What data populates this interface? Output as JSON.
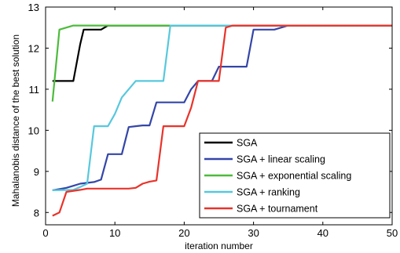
{
  "chart_data": {
    "type": "line",
    "xlabel": "iteration number",
    "ylabel": "Mahalanobis distance of the best solution",
    "xlim": [
      0,
      50
    ],
    "ylim": [
      7.7,
      13
    ],
    "xticks": [
      0,
      10,
      20,
      30,
      40,
      50
    ],
    "yticks": [
      8,
      9,
      10,
      11,
      12,
      13
    ],
    "grid": false,
    "legend_position": "bottom-right",
    "series": [
      {
        "name": "SGA",
        "color": "#000000",
        "points": [
          [
            1,
            11.2
          ],
          [
            4,
            11.2
          ],
          [
            5,
            12.1
          ],
          [
            5.5,
            12.45
          ],
          [
            8,
            12.45
          ],
          [
            9,
            12.55
          ],
          [
            50,
            12.55
          ]
        ]
      },
      {
        "name": "SGA + linear scaling",
        "color": "#3446a8",
        "points": [
          [
            1,
            8.54
          ],
          [
            3,
            8.6
          ],
          [
            4,
            8.65
          ],
          [
            5,
            8.7
          ],
          [
            7,
            8.74
          ],
          [
            8,
            8.8
          ],
          [
            9,
            9.42
          ],
          [
            11,
            9.42
          ],
          [
            12,
            10.08
          ],
          [
            13,
            10.1
          ],
          [
            14,
            10.12
          ],
          [
            15,
            10.12
          ],
          [
            16,
            10.68
          ],
          [
            20,
            10.68
          ],
          [
            21,
            11.0
          ],
          [
            22,
            11.2
          ],
          [
            24,
            11.2
          ],
          [
            25,
            11.55
          ],
          [
            26,
            11.55
          ],
          [
            27,
            11.55
          ],
          [
            28,
            11.55
          ],
          [
            29,
            11.55
          ],
          [
            30,
            12.45
          ],
          [
            33,
            12.45
          ],
          [
            35,
            12.55
          ],
          [
            50,
            12.55
          ]
        ]
      },
      {
        "name": "SGA + exponential scaling",
        "color": "#4cbb3b",
        "points": [
          [
            1,
            10.7
          ],
          [
            2,
            12.45
          ],
          [
            3,
            12.5
          ],
          [
            4,
            12.55
          ],
          [
            50,
            12.55
          ]
        ]
      },
      {
        "name": "SGA + ranking",
        "color": "#57c8dd",
        "points": [
          [
            1,
            8.54
          ],
          [
            4,
            8.55
          ],
          [
            5,
            8.62
          ],
          [
            6,
            8.7
          ],
          [
            7,
            10.1
          ],
          [
            9,
            10.1
          ],
          [
            10,
            10.4
          ],
          [
            11,
            10.8
          ],
          [
            12,
            11.0
          ],
          [
            13,
            11.2
          ],
          [
            17,
            11.2
          ],
          [
            18,
            12.55
          ],
          [
            50,
            12.55
          ]
        ]
      },
      {
        "name": "SGA + tournament",
        "color": "#e8332a",
        "points": [
          [
            1,
            7.92
          ],
          [
            2,
            8.0
          ],
          [
            3,
            8.5
          ],
          [
            5,
            8.55
          ],
          [
            6,
            8.58
          ],
          [
            12,
            8.58
          ],
          [
            13,
            8.6
          ],
          [
            14,
            8.7
          ],
          [
            15,
            8.75
          ],
          [
            16,
            8.78
          ],
          [
            17,
            10.1
          ],
          [
            20,
            10.1
          ],
          [
            21,
            10.55
          ],
          [
            22,
            11.2
          ],
          [
            23,
            11.2
          ],
          [
            25,
            11.2
          ],
          [
            26,
            12.5
          ],
          [
            27,
            12.55
          ],
          [
            50,
            12.55
          ]
        ]
      }
    ]
  }
}
